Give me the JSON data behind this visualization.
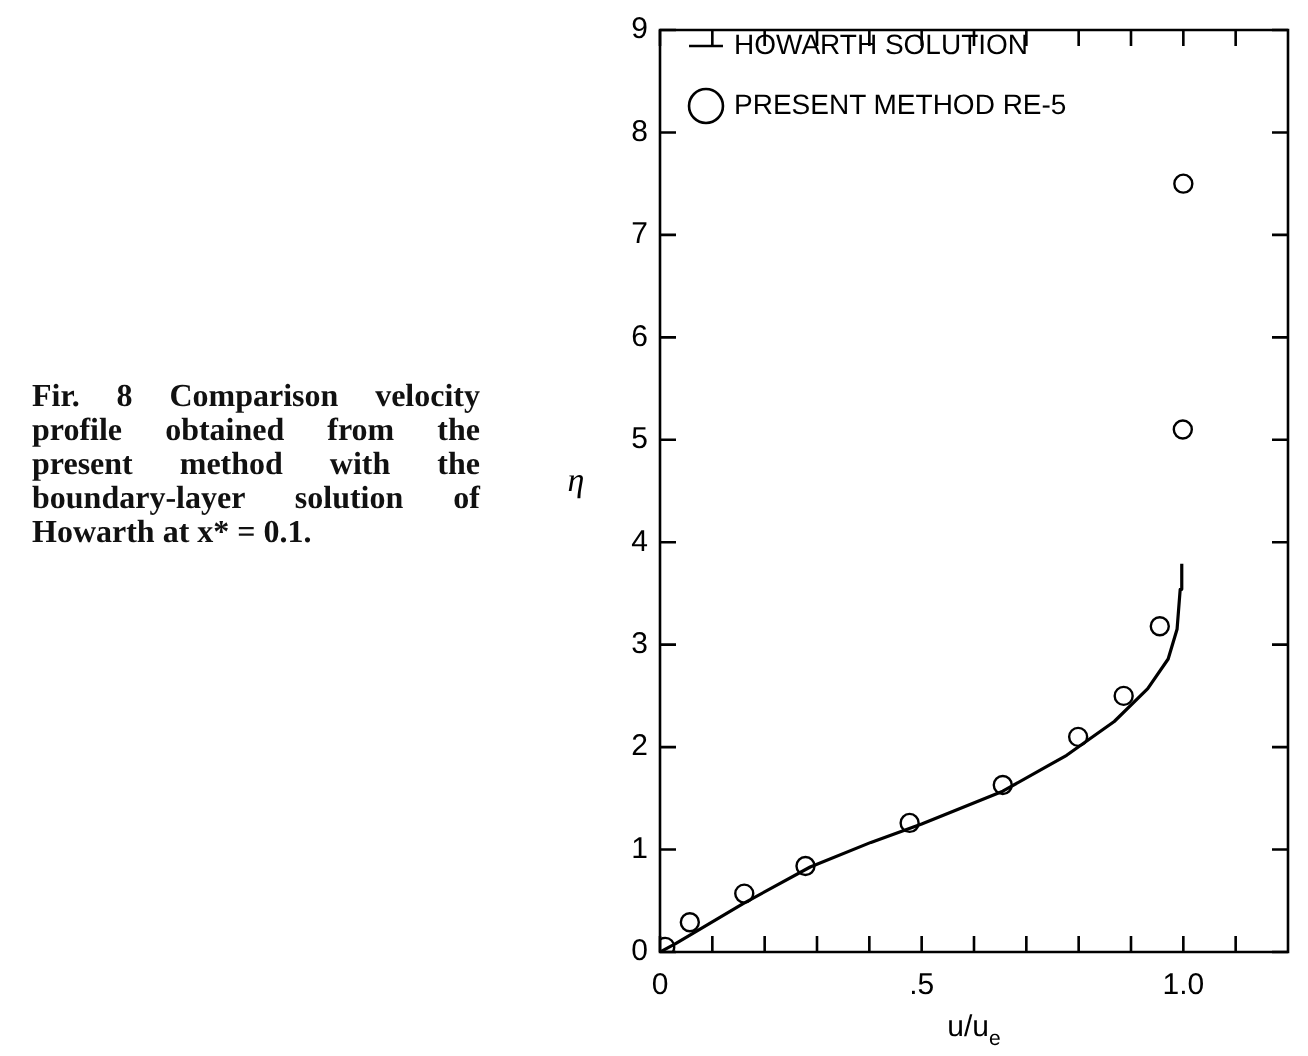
{
  "chart_data": {
    "type": "line",
    "xlabel": "u/u$_{e}$",
    "ylabel": "η",
    "annotations": [
      "Fir. 8 Comparison velocity profile obtained from the present method with the boundary-layer solution of Howarth at x* = 0.1."
    ],
    "xlim": [
      0,
      1.2
    ],
    "ylim": [
      0,
      9
    ],
    "xticks": [
      0,
      {
        "value": 0.1,
        "label": null
      },
      {
        "value": 0.2,
        "label": null
      },
      {
        "value": 0.3,
        "label": null
      },
      {
        "value": 0.4,
        "label": null
      },
      {
        "value": 0.5,
        "label": ".5"
      },
      {
        "value": 0.6,
        "label": null
      },
      {
        "value": 0.7,
        "label": null
      },
      {
        "value": 0.8,
        "label": null
      },
      {
        "value": 0.9,
        "label": null
      },
      {
        "value": 1.0,
        "label": "1.0"
      },
      {
        "value": 1.1,
        "label": null
      }
    ],
    "yticks": [
      0,
      1,
      2,
      3,
      4,
      5,
      6,
      7,
      8,
      9
    ],
    "grid": false,
    "legend": "top left",
    "series": [
      {
        "name": "HOWARTH SOLUTION",
        "type": "line",
        "color": "#000000",
        "line_style": "solid",
        "marker": "none",
        "x": [
          0,
          0.029,
          0.158,
          0.287,
          0.403,
          0.5,
          0.655,
          0.777,
          0.868,
          0.932,
          0.971,
          0.988,
          0.994,
          0.997
        ],
        "values": [
          0,
          0.08,
          0.47,
          0.83,
          1.07,
          1.25,
          1.57,
          1.92,
          2.25,
          2.57,
          2.86,
          3.15,
          3.54,
          3.79
        ]
      },
      {
        "name": "PRESENT METHOD RE-5",
        "type": "scatter",
        "color": "#000000",
        "marker": "circle",
        "x": [
          0.01,
          0.057,
          0.161,
          0.278,
          0.477,
          0.655,
          0.799,
          0.886,
          0.955,
          0.999,
          1.0
        ],
        "values": [
          0.05,
          0.29,
          0.57,
          0.84,
          1.26,
          1.63,
          2.1,
          2.5,
          3.18,
          5.1,
          7.5
        ]
      }
    ]
  }
}
